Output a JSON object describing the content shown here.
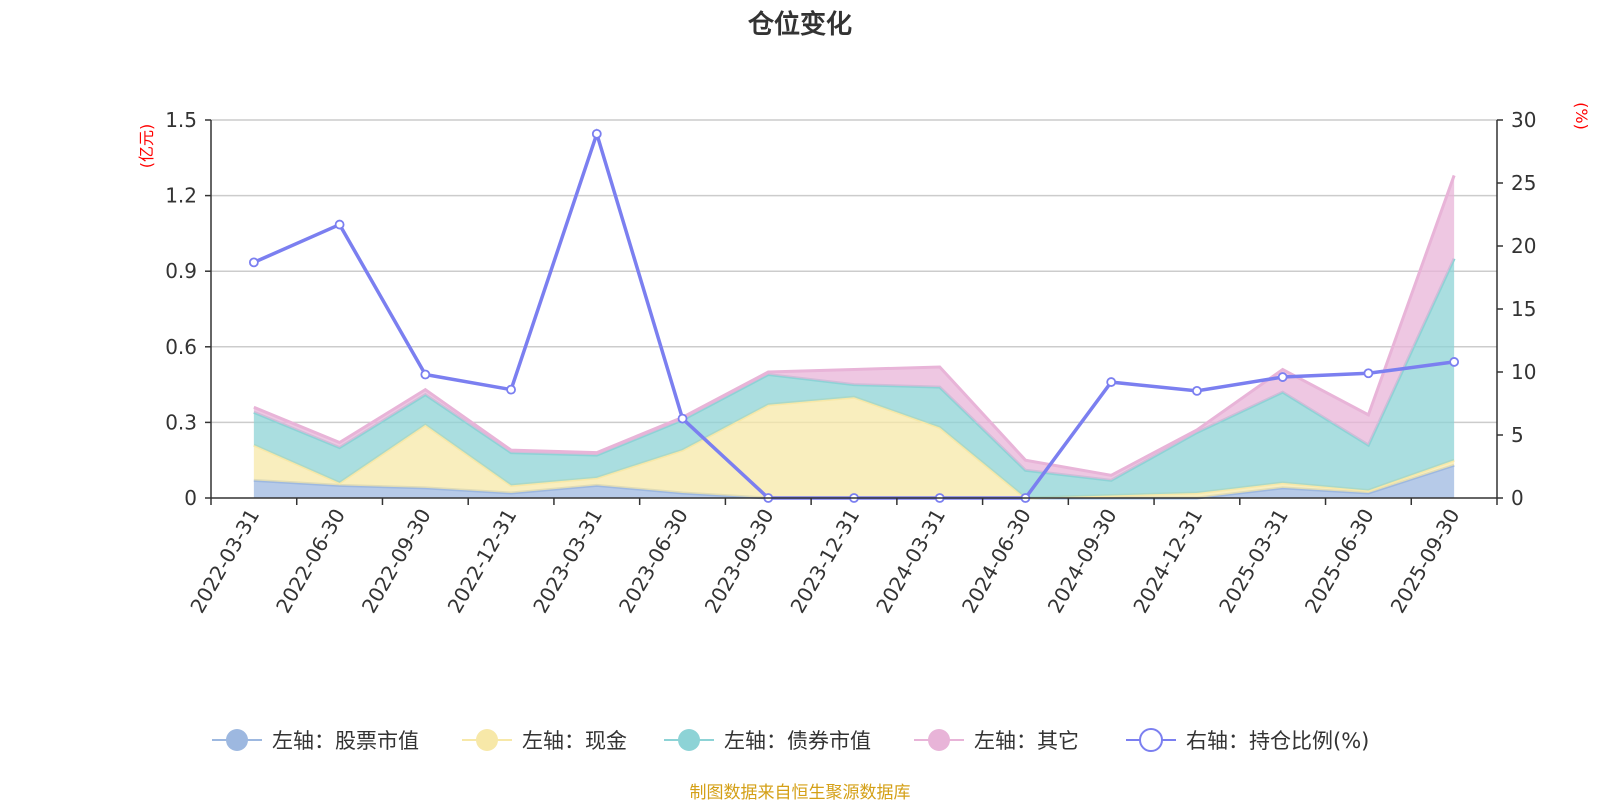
{
  "chart_data": {
    "type": "area",
    "title": "仓位变化",
    "left_axis_unit": "(亿元)",
    "right_axis_unit": "(%)",
    "x": [
      "2022-03-31",
      "2022-06-30",
      "2022-09-30",
      "2022-12-31",
      "2023-03-31",
      "2023-06-30",
      "2023-09-30",
      "2023-12-31",
      "2024-03-31",
      "2024-06-30",
      "2024-09-30",
      "2024-12-31",
      "2025-03-31",
      "2025-06-30",
      "2025-09-30"
    ],
    "left_ylim": [
      0,
      1.5
    ],
    "left_ticks": [
      "0",
      "0.3",
      "0.6",
      "0.9",
      "1.2",
      "1.5"
    ],
    "right_ylim": [
      0,
      30
    ],
    "right_ticks": [
      "0",
      "5",
      "10",
      "15",
      "20",
      "25",
      "30"
    ],
    "grid": true,
    "legend_position": "bottom",
    "stacked_series": [
      {
        "name": "左轴：股票市值",
        "color": "#9db8e0",
        "values": [
          0.07,
          0.05,
          0.04,
          0.02,
          0.05,
          0.02,
          0.0,
          0.0,
          0.0,
          0.0,
          0.0,
          0.0,
          0.04,
          0.02,
          0.13
        ]
      },
      {
        "name": "左轴：现金",
        "color": "#f7e8a8",
        "values": [
          0.14,
          0.01,
          0.25,
          0.03,
          0.03,
          0.17,
          0.37,
          0.4,
          0.28,
          0.0,
          0.01,
          0.02,
          0.02,
          0.01,
          0.02
        ]
      },
      {
        "name": "左轴：债券市值",
        "color": "#8dd3d6",
        "values": [
          0.13,
          0.14,
          0.12,
          0.13,
          0.09,
          0.12,
          0.12,
          0.05,
          0.16,
          0.11,
          0.06,
          0.24,
          0.36,
          0.18,
          0.8
        ]
      },
      {
        "name": "左轴：其它",
        "color": "#e8b4d8",
        "values": [
          0.02,
          0.02,
          0.02,
          0.01,
          0.01,
          0.01,
          0.01,
          0.06,
          0.08,
          0.04,
          0.02,
          0.01,
          0.09,
          0.12,
          0.33
        ]
      }
    ],
    "line_series": {
      "name": "右轴：持仓比例(%)",
      "color": "#7b7ff0",
      "values": [
        18.7,
        21.7,
        9.8,
        8.6,
        28.9,
        6.3,
        0.0,
        0.0,
        0.0,
        0.0,
        9.2,
        8.5,
        9.6,
        9.9,
        10.8
      ]
    }
  },
  "source_note": "制图数据来自恒生聚源数据库"
}
